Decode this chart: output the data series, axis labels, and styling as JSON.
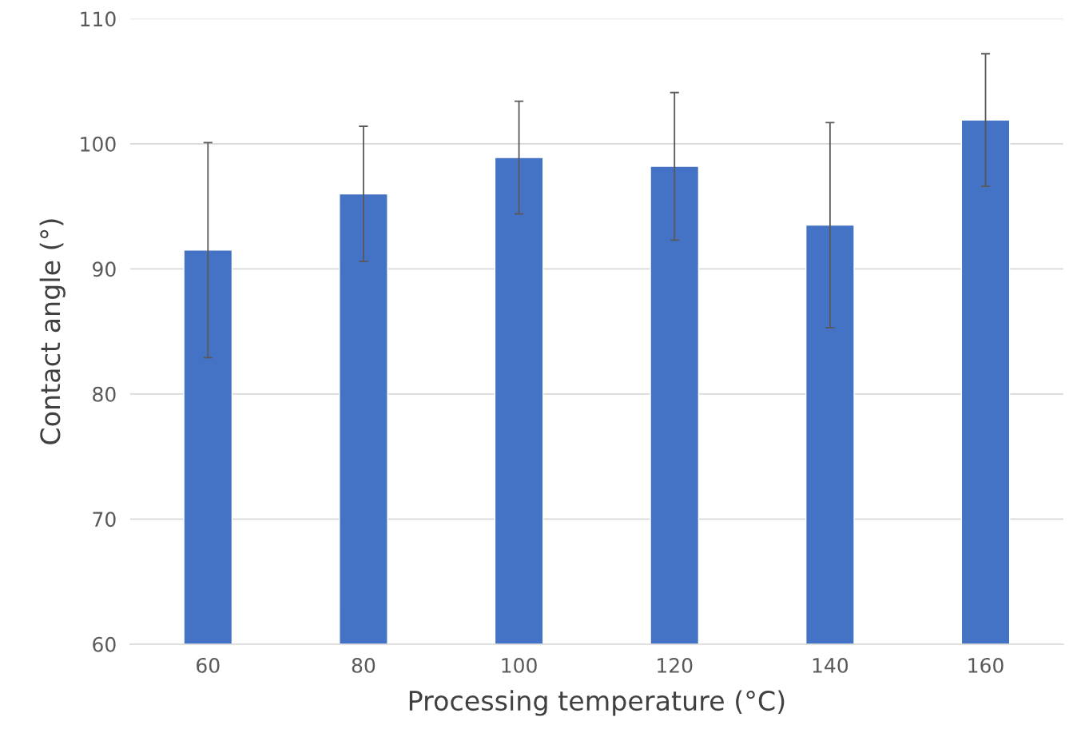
{
  "chart_data": {
    "type": "bar",
    "xlabel": "Processing temperature (°C)",
    "ylabel": "Contact angle (°)",
    "categories": [
      "60",
      "80",
      "100",
      "120",
      "140",
      "160"
    ],
    "values": [
      91.5,
      96.0,
      98.9,
      98.2,
      93.5,
      101.9
    ],
    "errors": [
      8.6,
      5.4,
      4.5,
      5.9,
      8.2,
      5.3
    ],
    "color": "#4472c4",
    "ylim": [
      60,
      110
    ],
    "yticks": [
      60,
      70,
      80,
      90,
      100,
      110
    ],
    "grid": "y"
  }
}
